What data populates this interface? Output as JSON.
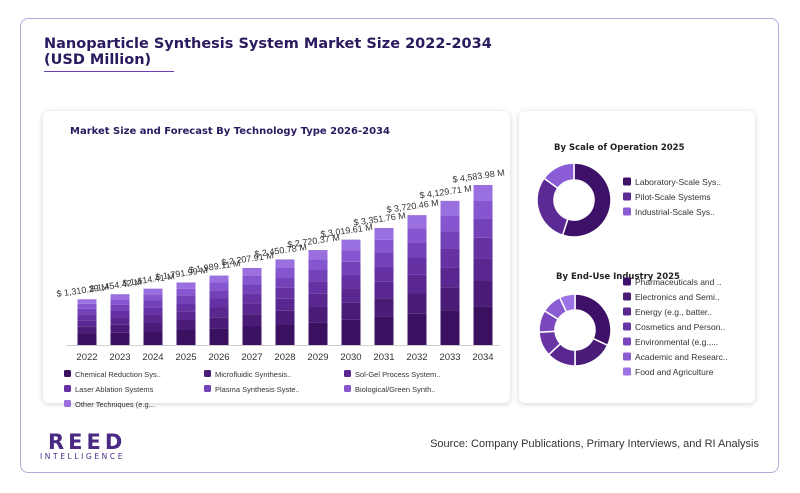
{
  "title": "Nanoparticle Synthesis System Market Size 2022-2034 (USD Million)",
  "source": "Source: Company Publications, Primary Interviews, and RI Analysis",
  "logo": {
    "main": "REED",
    "sub": "INTELLIGENCE"
  },
  "colors": {
    "title": "#2a1a5e",
    "segments": [
      "#3a1060",
      "#4a1c78",
      "#5a268f",
      "#6631a3",
      "#7442b8",
      "#8556cf",
      "#9a6fe0"
    ],
    "pie_scale": [
      "#3d1168",
      "#5c2a94",
      "#8a5cd6"
    ],
    "pie_industry": [
      "#3d1168",
      "#4a1c78",
      "#5a268f",
      "#6a36a6",
      "#7a47bc",
      "#8a5cd2",
      "#9c72e4"
    ]
  },
  "chart_data": [
    {
      "type": "bar",
      "title": "Market Size and Forecast By Technology Type 2026-2034",
      "categories": [
        "2022",
        "2023",
        "2024",
        "2025",
        "2026",
        "2027",
        "2028",
        "2029",
        "2030",
        "2031",
        "2032",
        "2033",
        "2034"
      ],
      "totals": [
        1310.29,
        1454.42,
        1614.41,
        1791.99,
        1989.11,
        2207.91,
        2450.78,
        2720.37,
        3019.61,
        3351.76,
        3720.46,
        4129.71,
        4583.98
      ],
      "data_labels": [
        "$ 1,310.29 M",
        "$ 1,454.42 M",
        "$ 1,614.41 M",
        "$ 1,791.99 M",
        "$ 1,989.11 M",
        "$ 2,207.91 M",
        "$ 2,450.78 M",
        "$ 2,720.37 M",
        "$ 3,019.61 M",
        "$ 3,351.76 M",
        "$ 3,720.46 M",
        "$ 4,129.71 M",
        "$ 4,583.98 M"
      ],
      "stacked": true,
      "segment_shares": [
        0.24,
        0.16,
        0.14,
        0.13,
        0.12,
        0.11,
        0.1
      ],
      "legend": [
        "Chemical Reduction Sys..",
        "Microfluidic Synthesis..",
        "Sol-Gel Process System..",
        "Laser Ablation Systems",
        "Plasma Synthesis Syste..",
        "Biological/Green Synth..",
        "Other Techniques (e.g..."
      ],
      "legend_position": "bottom",
      "ylim": [
        0,
        4800
      ],
      "grid": false
    },
    {
      "type": "pie",
      "title": "By Scale of Operation 2025",
      "labels": [
        "Laboratory-Scale Sys..",
        "Pilot-Scale Systems",
        "Industrial-Scale Sys.."
      ],
      "values": [
        55,
        30,
        15
      ],
      "donut": true
    },
    {
      "type": "pie",
      "title": "By End-Use Industry 2025",
      "labels": [
        "Pharmaceuticals and ..",
        "Electronics and Semi..",
        "Energy (e.g., batter..",
        "Cosmetics and Person..",
        "Environmental (e.g.,...",
        "Academic and Researc..",
        "Food and Agriculture"
      ],
      "values": [
        32,
        18,
        13,
        11,
        10,
        9,
        7
      ],
      "donut": true
    }
  ]
}
